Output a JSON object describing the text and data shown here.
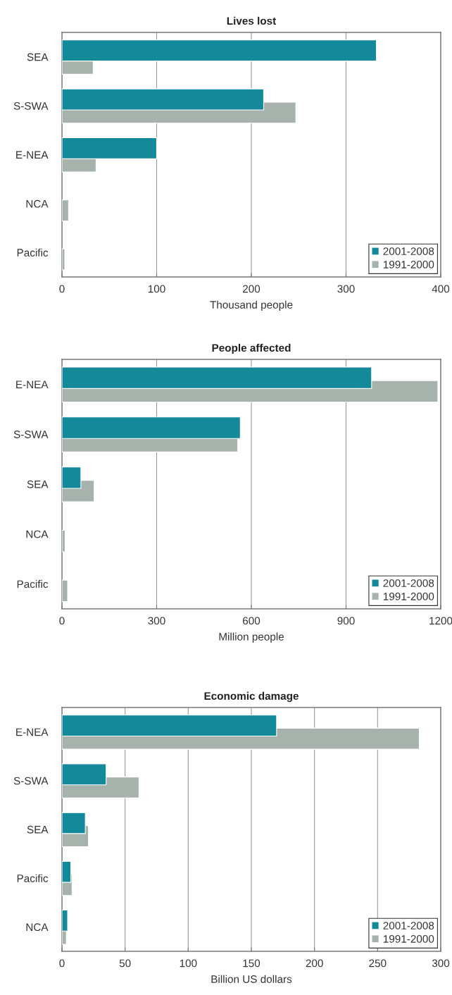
{
  "chart_data": [
    {
      "type": "bar",
      "orientation": "horizontal",
      "title": "Lives lost",
      "xlabel": "Thousand people",
      "categories": [
        "SEA",
        "S-SWA",
        "E-NEA",
        "NCA",
        "Pacific"
      ],
      "xlim": [
        0,
        400
      ],
      "xticks": [
        0,
        100,
        200,
        300,
        400
      ],
      "grid": "x",
      "legend": "bottom right",
      "series": [
        {
          "name": "2001-2008",
          "color": "#14899a",
          "values": [
            332,
            213,
            100,
            null,
            null
          ]
        },
        {
          "name": "1991-2000",
          "color": "#a6b3ad",
          "values": [
            33,
            247,
            36,
            7,
            3
          ]
        }
      ]
    },
    {
      "type": "bar",
      "orientation": "horizontal",
      "title": "People affected",
      "xlabel": "Million people",
      "categories": [
        "E-NEA",
        "S-SWA",
        "SEA",
        "NCA",
        "Pacific"
      ],
      "xlim": [
        0,
        1200
      ],
      "xticks": [
        0,
        300,
        600,
        900,
        1200
      ],
      "grid": "x",
      "legend": "bottom right",
      "series": [
        {
          "name": "2001-2008",
          "color": "#14899a",
          "values": [
            981,
            565,
            60,
            null,
            null
          ]
        },
        {
          "name": "1991-2000",
          "color": "#a6b3ad",
          "values": [
            1191,
            557,
            102,
            10,
            18
          ]
        }
      ]
    },
    {
      "type": "bar",
      "orientation": "horizontal",
      "title": "Economic damage",
      "xlabel": "Billion US dollars",
      "categories": [
        "E-NEA",
        "S-SWA",
        "SEA",
        "Pacific",
        "NCA"
      ],
      "xlim": [
        0,
        300
      ],
      "xticks": [
        0,
        50,
        100,
        150,
        200,
        250,
        300
      ],
      "grid": "x",
      "legend": "bottom right",
      "series": [
        {
          "name": "2001-2008",
          "color": "#14899a",
          "values": [
            170,
            35,
            18.5,
            7,
            4.5
          ]
        },
        {
          "name": "1991-2000",
          "color": "#a6b3ad",
          "values": [
            283,
            61,
            21,
            8,
            3.5
          ]
        }
      ]
    }
  ]
}
